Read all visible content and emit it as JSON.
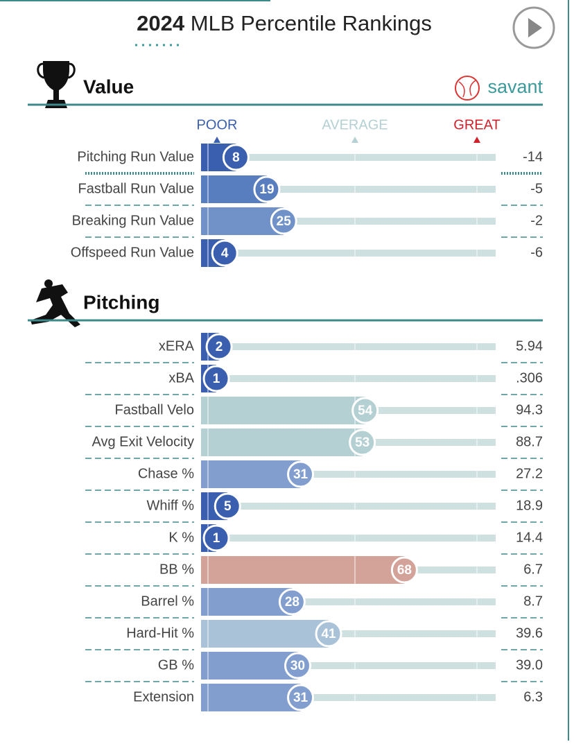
{
  "header": {
    "year": "2024",
    "title": "MLB Percentile Rankings"
  },
  "scale": {
    "poor": "POOR",
    "average": "AVERAGE",
    "great": "GREAT"
  },
  "sections": [
    {
      "title": "Value",
      "brand": "savant",
      "rows": [
        {
          "label": "Pitching Run Value",
          "percentile": 8,
          "value": "-14",
          "color": "#3a5fae"
        },
        {
          "label": "Fastball Run Value",
          "percentile": 19,
          "value": "-5",
          "color": "#587ec0"
        },
        {
          "label": "Breaking Run Value",
          "percentile": 25,
          "value": "-2",
          "color": "#7191c9"
        },
        {
          "label": "Offspeed Run Value",
          "percentile": 4,
          "value": "-6",
          "color": "#3a5fae"
        }
      ]
    },
    {
      "title": "Pitching",
      "rows": [
        {
          "label": "xERA",
          "percentile": 2,
          "value": "5.94",
          "color": "#3a5fae"
        },
        {
          "label": "xBA",
          "percentile": 1,
          "value": ".306",
          "color": "#3a5fae"
        },
        {
          "label": "Fastball Velo",
          "percentile": 54,
          "value": "94.3",
          "color": "#b4d0d3"
        },
        {
          "label": "Avg Exit Velocity",
          "percentile": 53,
          "value": "88.7",
          "color": "#b4d0d3"
        },
        {
          "label": "Chase %",
          "percentile": 31,
          "value": "27.2",
          "color": "#819ecf"
        },
        {
          "label": "Whiff %",
          "percentile": 5,
          "value": "18.9",
          "color": "#3a5fae"
        },
        {
          "label": "K %",
          "percentile": 1,
          "value": "14.4",
          "color": "#3a5fae"
        },
        {
          "label": "BB %",
          "percentile": 68,
          "value": "6.7",
          "color": "#d3a39a"
        },
        {
          "label": "Barrel %",
          "percentile": 28,
          "value": "8.7",
          "color": "#819ecf"
        },
        {
          "label": "Hard-Hit %",
          "percentile": 41,
          "value": "39.6",
          "color": "#a9c2d8"
        },
        {
          "label": "GB %",
          "percentile": 30,
          "value": "39.0",
          "color": "#819ecf"
        },
        {
          "label": "Extension",
          "percentile": 31,
          "value": "6.3",
          "color": "#819ecf"
        }
      ]
    }
  ]
}
